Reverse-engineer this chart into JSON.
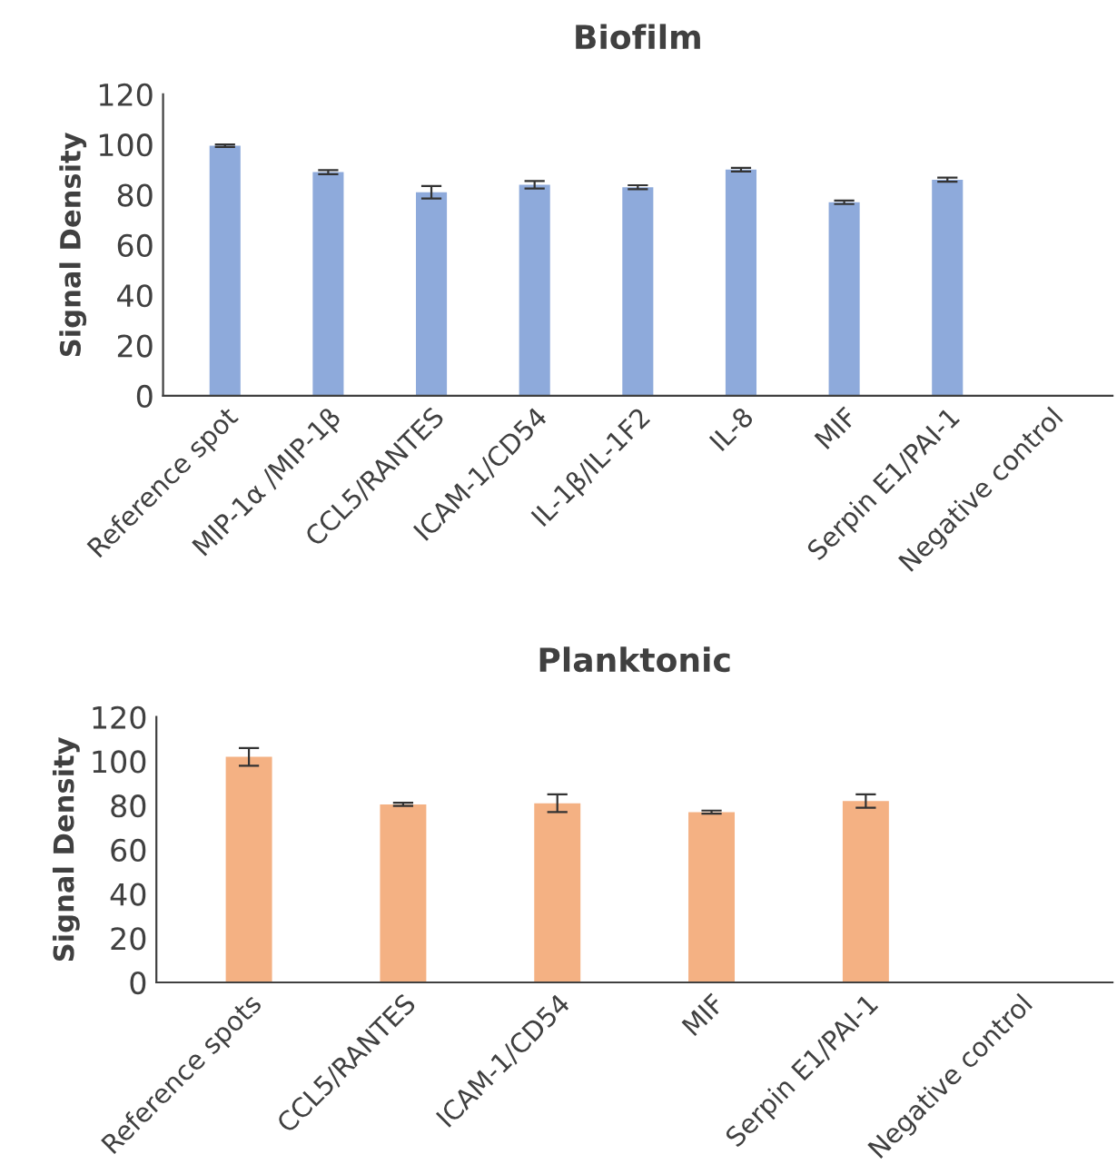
{
  "chart_data": [
    {
      "type": "bar",
      "title": "Biofilm",
      "ylabel": "Signal Density",
      "categories": [
        "Reference spot",
        "MIP-1α /MIP-1β",
        "CCL5/RANTES",
        "ICAM-1/CD54",
        "IL-1β/IL-1F2",
        "IL-8",
        "MIF",
        "Serpin E1/PAI-1",
        "Negative control"
      ],
      "values": [
        99.5,
        89,
        81,
        84,
        83,
        90,
        77,
        86,
        null
      ],
      "errors": [
        0.5,
        0.8,
        2.5,
        1.5,
        0.8,
        0.7,
        0.7,
        0.8,
        null
      ],
      "color": "#8eaadb",
      "ylim": [
        0,
        120
      ],
      "yticks": [
        0,
        20,
        40,
        60,
        80,
        100,
        120
      ],
      "grid": false,
      "legend": false
    },
    {
      "type": "bar",
      "title": "Planktonic",
      "ylabel": "Signal Density",
      "categories": [
        "Reference spots",
        "CCL5/RANTES",
        "ICAM-1/CD54",
        "MIF",
        "Serpin E1/PAI-1",
        "Negative control"
      ],
      "values": [
        102,
        80.5,
        81,
        77,
        82,
        null
      ],
      "errors": [
        4,
        0.7,
        4,
        0.7,
        3,
        null
      ],
      "color": "#f4b183",
      "ylim": [
        0,
        120
      ],
      "yticks": [
        0,
        20,
        40,
        60,
        80,
        100,
        120
      ],
      "grid": false,
      "legend": false
    }
  ]
}
